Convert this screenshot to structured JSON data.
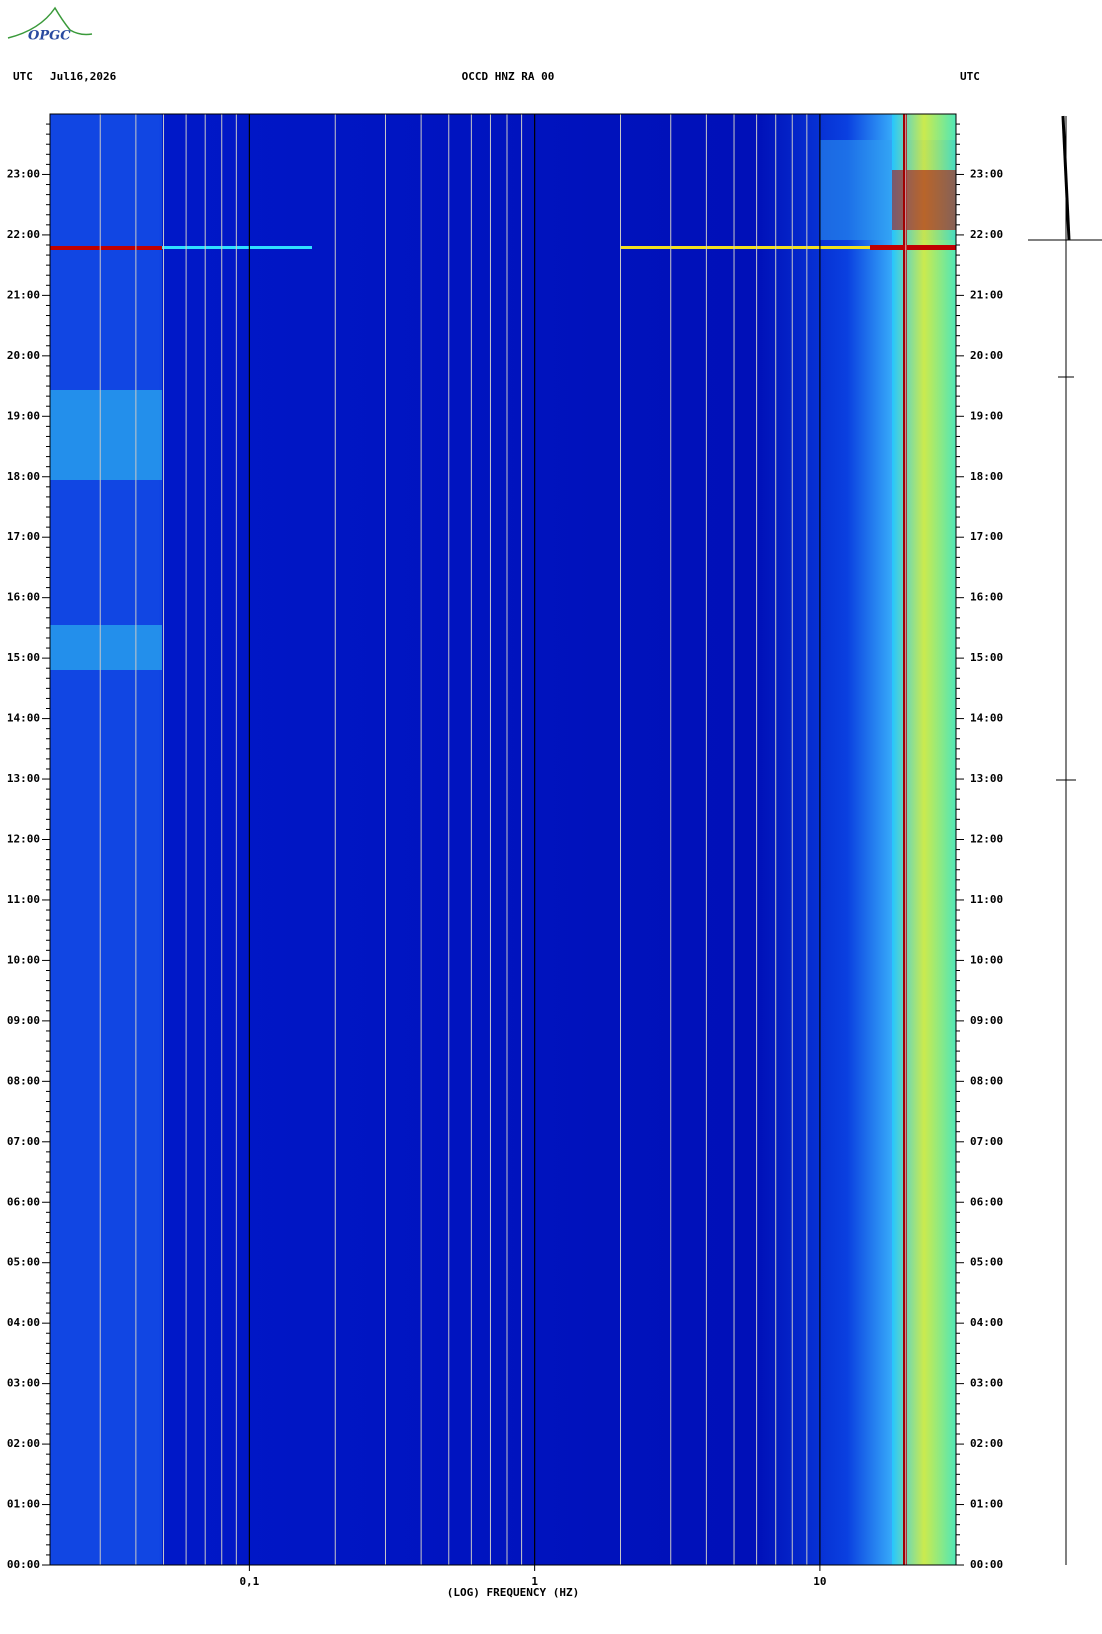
{
  "logo": "OPGC",
  "chart_data": {
    "type": "spectrogram",
    "title": "OCCD HNZ RA 00",
    "date": "Jul16,2026",
    "left_label": "UTC",
    "right_label": "UTC",
    "x_label": "(LOG) FREQUENCY (HZ)",
    "x_log": true,
    "xlim": [
      0.02,
      30
    ],
    "xticks": [
      {
        "value": 0.1,
        "label": "0,1"
      },
      1,
      10
    ],
    "x_grid": [
      0.03,
      0.04,
      0.05,
      0.06,
      0.07,
      0.08,
      0.09,
      0.1,
      0.2,
      0.3,
      0.4,
      0.5,
      0.6,
      0.7,
      0.8,
      0.9,
      1,
      2,
      3,
      4,
      5,
      6,
      7,
      8,
      9,
      10,
      20,
      30
    ],
    "ylim": [
      0,
      24
    ],
    "yticks": [
      {
        "value": 0,
        "label": "00:00"
      },
      {
        "value": 1,
        "label": "01:00"
      },
      {
        "value": 2,
        "label": "02:00"
      },
      {
        "value": 3,
        "label": "03:00"
      },
      {
        "value": 4,
        "label": "04:00"
      },
      {
        "value": 5,
        "label": "05:00"
      },
      {
        "value": 6,
        "label": "06:00"
      },
      {
        "value": 7,
        "label": "07:00"
      },
      {
        "value": 8,
        "label": "08:00"
      },
      {
        "value": 9,
        "label": "09:00"
      },
      {
        "value": 10,
        "label": "10:00"
      },
      {
        "value": 11,
        "label": "11:00"
      },
      {
        "value": 12,
        "label": "12:00"
      },
      {
        "value": 13,
        "label": "13:00"
      },
      {
        "value": 14,
        "label": "14:00"
      },
      {
        "value": 15,
        "label": "15:00"
      },
      {
        "value": 16,
        "label": "16:00"
      },
      {
        "value": 17,
        "label": "17:00"
      },
      {
        "value": 18,
        "label": "18:00"
      },
      {
        "value": 19,
        "label": "19:00"
      },
      {
        "value": 20,
        "label": "20:00"
      },
      {
        "value": 21,
        "label": "21:00"
      },
      {
        "value": 22,
        "label": "22:00"
      },
      {
        "value": 23,
        "label": "23:00"
      }
    ]
  }
}
